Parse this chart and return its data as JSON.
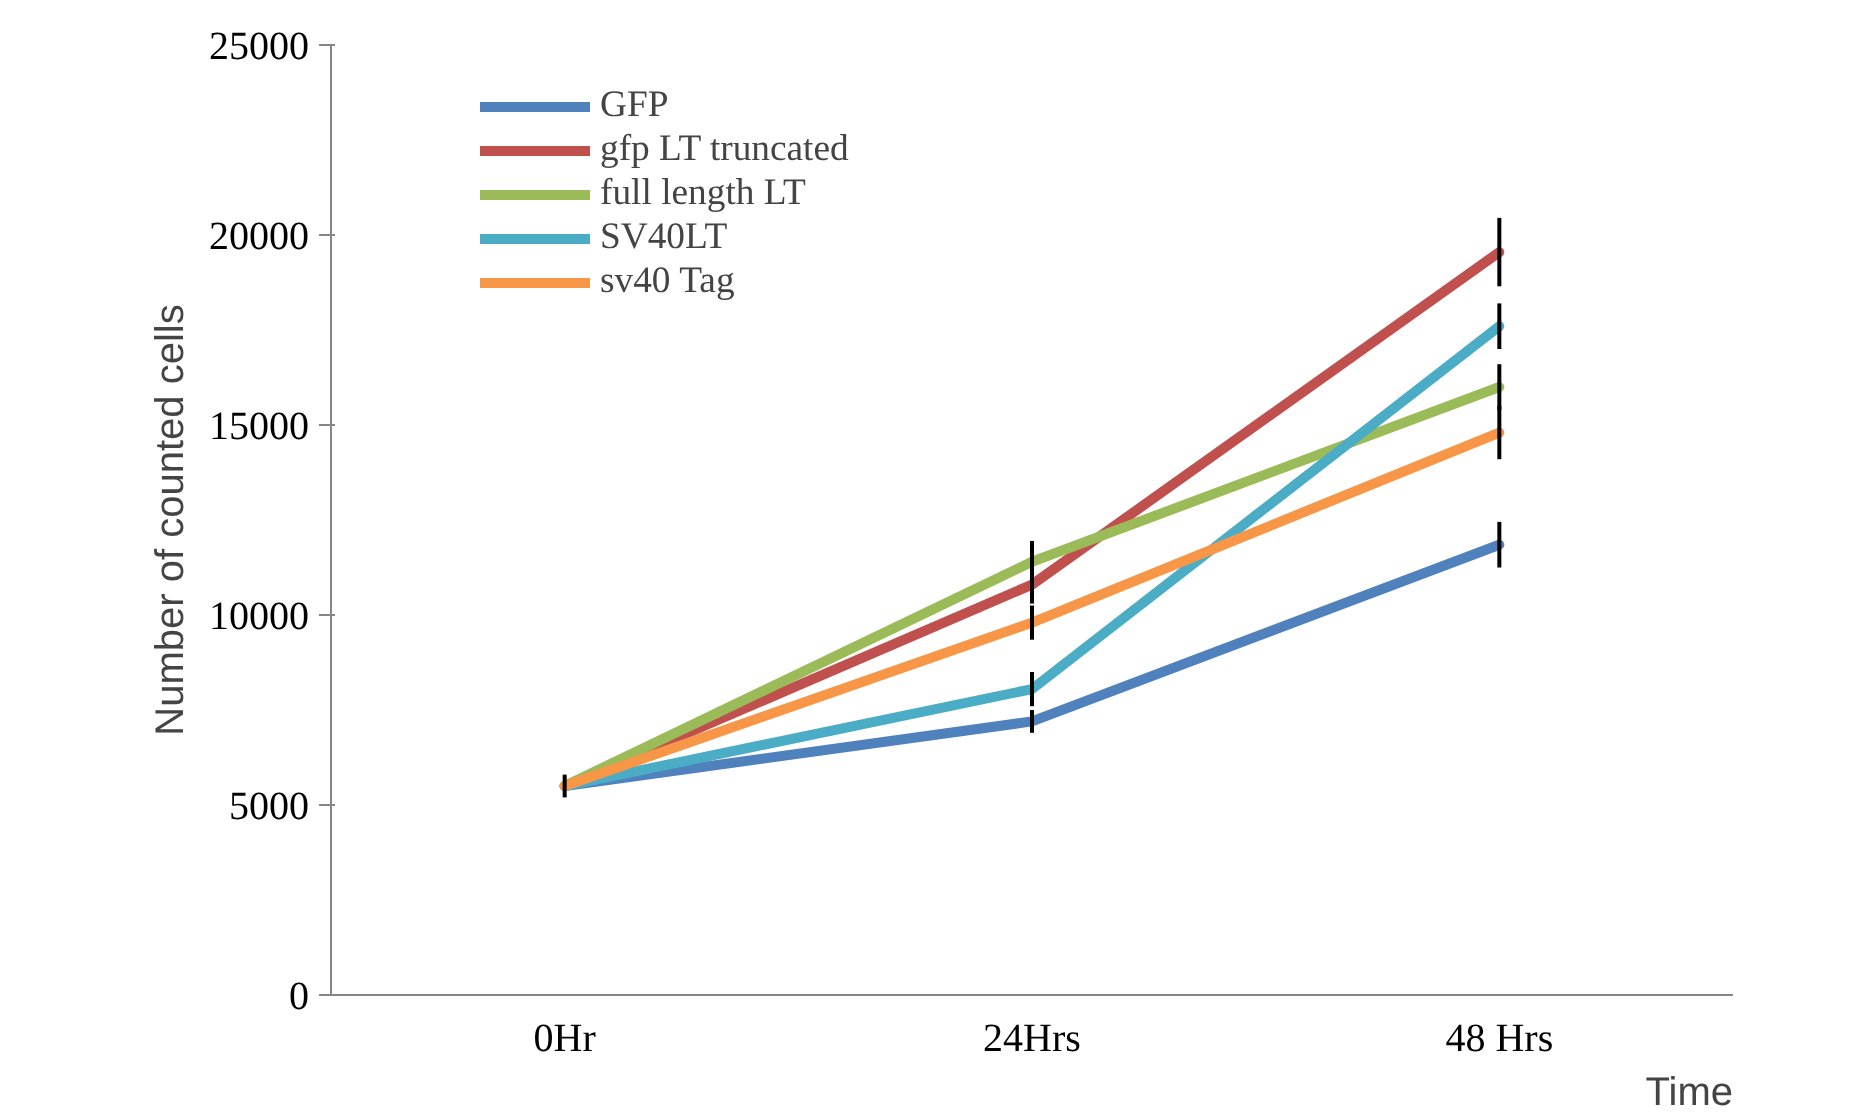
{
  "chart_data": {
    "type": "line",
    "xlabel": "Time",
    "ylabel": "Number of counted cells",
    "categories": [
      "0Hr",
      "24Hrs",
      "48 Hrs"
    ],
    "series": [
      {
        "name": "GFP",
        "color": "#4f81bd",
        "values": [
          5500,
          7200,
          11850
        ],
        "errors": [
          300,
          300,
          600
        ]
      },
      {
        "name": "gfp LT truncated",
        "color": "#c0504d",
        "values": [
          5500,
          10800,
          19550
        ],
        "errors": [
          null,
          500,
          900
        ]
      },
      {
        "name": "full length LT",
        "color": "#9bbb59",
        "values": [
          5500,
          11400,
          16000
        ],
        "errors": [
          null,
          550,
          600
        ]
      },
      {
        "name": "SV40LT",
        "color": "#4bacc6",
        "values": [
          5500,
          8050,
          17600
        ],
        "errors": [
          null,
          450,
          600
        ]
      },
      {
        "name": "sv40 Tag",
        "color": "#f79646",
        "values": [
          5500,
          9800,
          14800
        ],
        "errors": [
          null,
          450,
          700
        ]
      }
    ],
    "ylim": [
      0,
      25000
    ],
    "yticks": [
      0,
      5000,
      10000,
      15000,
      20000,
      25000
    ],
    "grid": false,
    "legend": "top left",
    "marker": "none",
    "line_style": "solid"
  }
}
